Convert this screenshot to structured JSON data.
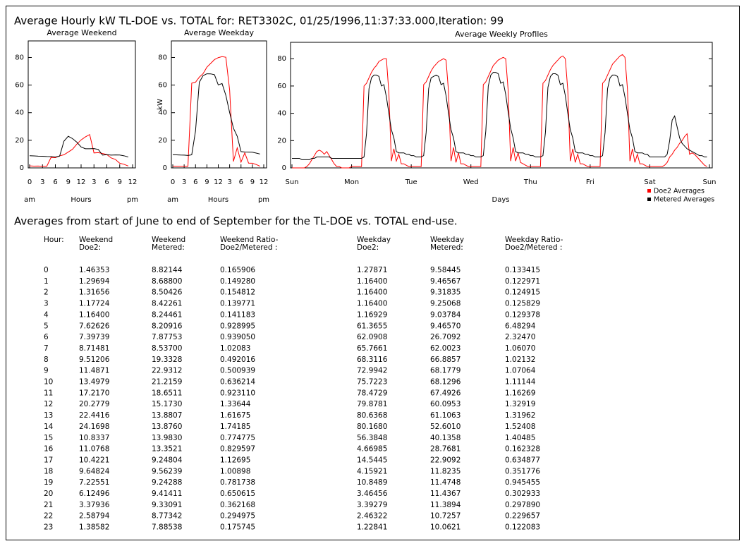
{
  "title": "Average Hourly kW TL-DOE  vs. TOTAL   for: RET3302C, 01/25/1996,11:37:33.000,Iteration: 99",
  "chart_data": [
    {
      "type": "line",
      "title": "Average Weekend",
      "xlabel": "Hours",
      "xlabel_start": "am",
      "xlabel_end": "pm",
      "x": [
        0,
        1,
        2,
        3,
        4,
        5,
        6,
        7,
        8,
        9,
        10,
        11,
        12,
        13,
        14,
        15,
        16,
        17,
        18,
        19,
        20,
        21,
        22,
        23
      ],
      "xlim": [
        0,
        24
      ],
      "xticks": [
        0,
        3,
        6,
        9,
        12,
        {
          "value": 15,
          "label": "3"
        },
        {
          "value": 18,
          "label": "6"
        },
        {
          "value": 21,
          "label": "9"
        },
        {
          "value": 24,
          "label": "12"
        }
      ],
      "ylim": [
        0,
        92
      ],
      "yticks": [
        0,
        20,
        40,
        60,
        80
      ],
      "series": [
        {
          "color": "#ff0000",
          "values": [
            1.46353,
            1.29694,
            1.31656,
            1.17724,
            1.164,
            7.62626,
            7.39739,
            8.71481,
            9.51206,
            11.4871,
            13.4979,
            17.217,
            20.2779,
            22.4416,
            24.1698,
            10.8337,
            11.0768,
            10.4221,
            9.64824,
            7.22551,
            6.12496,
            3.37936,
            2.58794,
            1.38582
          ]
        },
        {
          "color": "#000000",
          "values": [
            8.82144,
            8.688,
            8.50426,
            8.42261,
            8.24461,
            8.20916,
            7.87753,
            8.537,
            19.3328,
            22.9312,
            21.2159,
            18.6511,
            15.173,
            13.8807,
            13.876,
            13.983,
            13.3521,
            9.24804,
            9.56239,
            9.24288,
            9.41411,
            9.33091,
            8.77342,
            7.88538
          ]
        }
      ]
    },
    {
      "type": "line",
      "title": "Average Weekday",
      "ylabel": "kW",
      "xlabel": "Hours",
      "xlabel_start": "am",
      "xlabel_end": "pm",
      "x": [
        0,
        1,
        2,
        3,
        4,
        5,
        6,
        7,
        8,
        9,
        10,
        11,
        12,
        13,
        14,
        15,
        16,
        17,
        18,
        19,
        20,
        21,
        22,
        23
      ],
      "xlim": [
        0,
        24
      ],
      "xticks": [
        0,
        3,
        6,
        9,
        12,
        {
          "value": 15,
          "label": "3"
        },
        {
          "value": 18,
          "label": "6"
        },
        {
          "value": 21,
          "label": "9"
        },
        {
          "value": 24,
          "label": "12"
        }
      ],
      "ylim": [
        0,
        92
      ],
      "yticks": [
        0,
        20,
        40,
        60,
        80
      ],
      "series": [
        {
          "color": "#ff0000",
          "values": [
            1.27871,
            1.164,
            1.164,
            1.164,
            1.16929,
            61.3655,
            62.0908,
            65.7661,
            68.3116,
            72.9942,
            75.7223,
            78.4729,
            79.8781,
            80.6368,
            80.168,
            56.3848,
            4.66985,
            14.5445,
            4.15921,
            10.8489,
            3.46456,
            3.39279,
            2.46322,
            1.22841
          ]
        },
        {
          "color": "#000000",
          "values": [
            9.58445,
            9.46567,
            9.31835,
            9.25068,
            9.03784,
            9.4657,
            26.7092,
            62.0023,
            66.8857,
            68.1779,
            68.1296,
            67.4926,
            60.0953,
            61.1063,
            52.601,
            40.1358,
            28.7681,
            22.9092,
            11.8235,
            11.4748,
            11.4367,
            11.3894,
            10.7257,
            10.0621
          ]
        }
      ]
    },
    {
      "type": "line",
      "title": "Average Weekly Profiles",
      "xlabel": "Days",
      "x": [
        0,
        1,
        2,
        3,
        4,
        5,
        6,
        7,
        8,
        9,
        10,
        11,
        12,
        13,
        14,
        15,
        16,
        17,
        18,
        19,
        20,
        21,
        22,
        23,
        24,
        25,
        26,
        27,
        28,
        29,
        30,
        31,
        32,
        33,
        34,
        35,
        36,
        37,
        38,
        39,
        40,
        41,
        42,
        43,
        44,
        45,
        46,
        47,
        48,
        49,
        50,
        51,
        52,
        53,
        54,
        55,
        56,
        57,
        58,
        59,
        60,
        61,
        62,
        63,
        64,
        65,
        66,
        67,
        68,
        69,
        70,
        71,
        72,
        73,
        74,
        75,
        76,
        77,
        78,
        79,
        80,
        81,
        82,
        83,
        84,
        85,
        86,
        87,
        88,
        89,
        90,
        91,
        92,
        93,
        94,
        95,
        96,
        97,
        98,
        99,
        100,
        101,
        102,
        103,
        104,
        105,
        106,
        107,
        108,
        109,
        110,
        111,
        112,
        113,
        114,
        115,
        116,
        117,
        118,
        119,
        120,
        121,
        122,
        123,
        124,
        125,
        126,
        127,
        128,
        129,
        130,
        131,
        132,
        133,
        134,
        135,
        136,
        137,
        138,
        139,
        140,
        141,
        142,
        143,
        144,
        145,
        146,
        147,
        148,
        149,
        150,
        151,
        152,
        153,
        154,
        155,
        156,
        157,
        158,
        159,
        160,
        161,
        162,
        163,
        164,
        165,
        166,
        167
      ],
      "xlim": [
        0,
        168
      ],
      "xticks": [
        {
          "value": 0,
          "label": "Sun"
        },
        {
          "value": 24,
          "label": "Mon"
        },
        {
          "value": 48,
          "label": "Tue"
        },
        {
          "value": 72,
          "label": "Wed"
        },
        {
          "value": 96,
          "label": "Thu"
        },
        {
          "value": 120,
          "label": "Fri"
        },
        {
          "value": 144,
          "label": "Sat"
        },
        {
          "value": 168,
          "label": "Sun"
        }
      ],
      "ylim": [
        0,
        92
      ],
      "yticks": [
        0,
        20,
        40,
        60,
        80
      ],
      "series": [
        {
          "name": "Doe2 Averages",
          "color": "#ff0000",
          "values": [
            0,
            0,
            0,
            0,
            0,
            0,
            1,
            3,
            6,
            9,
            12,
            13,
            12,
            10,
            12,
            9,
            6,
            3,
            1,
            1,
            0,
            0,
            0,
            0,
            1,
            1,
            1,
            1,
            1,
            60,
            62,
            66,
            70,
            73,
            75,
            78,
            79,
            80,
            80,
            55,
            5,
            14,
            5,
            10,
            3,
            3,
            2,
            1,
            1,
            1,
            1,
            1,
            1,
            61,
            63,
            67,
            71,
            74,
            76,
            78,
            79,
            80,
            79,
            56,
            5,
            15,
            4,
            11,
            3,
            3,
            2,
            1,
            1,
            1,
            1,
            1,
            1,
            61,
            63,
            67,
            71,
            75,
            77,
            79,
            80,
            81,
            80,
            57,
            5,
            15,
            5,
            11,
            4,
            3,
            2,
            1,
            1,
            1,
            1,
            1,
            1,
            62,
            64,
            68,
            72,
            75,
            77,
            79,
            81,
            82,
            80,
            57,
            5,
            14,
            4,
            10,
            3,
            3,
            2,
            1,
            1,
            1,
            1,
            1,
            1,
            62,
            64,
            68,
            72,
            76,
            78,
            80,
            82,
            83,
            81,
            58,
            5,
            14,
            4,
            10,
            3,
            3,
            2,
            1,
            1,
            1,
            1,
            1,
            1,
            1,
            2,
            4,
            8,
            10,
            13,
            15,
            18,
            20,
            23,
            25,
            10,
            11,
            10,
            8,
            6,
            4,
            2,
            1
          ]
        },
        {
          "name": "Metered Averages",
          "color": "#000000",
          "values": [
            7,
            7,
            7,
            7,
            6,
            6,
            6,
            6,
            7,
            7,
            8,
            8,
            8,
            8,
            8,
            8,
            7,
            7,
            7,
            7,
            7,
            7,
            7,
            7,
            7,
            7,
            7,
            7,
            7,
            8,
            25,
            58,
            66,
            68,
            68,
            67,
            60,
            61,
            52,
            40,
            28,
            22,
            12,
            11,
            11,
            11,
            10,
            10,
            9,
            9,
            8,
            8,
            8,
            9,
            26,
            58,
            66,
            67,
            68,
            67,
            61,
            62,
            53,
            40,
            28,
            22,
            12,
            11,
            11,
            11,
            10,
            10,
            9,
            9,
            8,
            8,
            8,
            9,
            27,
            60,
            68,
            70,
            70,
            69,
            62,
            63,
            54,
            41,
            29,
            22,
            12,
            11,
            11,
            11,
            10,
            10,
            9,
            9,
            8,
            8,
            8,
            9,
            26,
            59,
            67,
            69,
            69,
            68,
            61,
            62,
            53,
            40,
            28,
            22,
            12,
            11,
            11,
            11,
            10,
            10,
            9,
            9,
            8,
            8,
            8,
            9,
            26,
            58,
            66,
            68,
            68,
            67,
            60,
            61,
            52,
            40,
            28,
            22,
            12,
            11,
            11,
            11,
            10,
            10,
            8,
            8,
            8,
            8,
            8,
            8,
            8,
            10,
            20,
            35,
            38,
            30,
            22,
            18,
            16,
            14,
            13,
            12,
            11,
            10,
            9,
            9,
            8,
            8
          ]
        }
      ]
    }
  ],
  "table": {
    "caption": "Averages from start of June to end of September for the TL-DOE  vs. TOTAL end-use.",
    "headers": [
      [
        "Hour:"
      ],
      [
        "Weekend",
        "Doe2:"
      ],
      [
        "Weekend",
        "Metered:"
      ],
      [
        "Weekend Ratio-",
        "Doe2/Metered :"
      ],
      [
        "Weekday",
        "Doe2:"
      ],
      [
        "Weekday",
        "Metered:"
      ],
      [
        "Weekday Ratio-",
        "Doe2/Metered :"
      ]
    ],
    "rows": [
      [
        "0",
        "1.46353",
        "8.82144",
        "0.165906",
        "1.27871",
        "9.58445",
        "0.133415"
      ],
      [
        "1",
        "1.29694",
        "8.68800",
        "0.149280",
        "1.16400",
        "9.46567",
        "0.122971"
      ],
      [
        "2",
        "1.31656",
        "8.50426",
        "0.154812",
        "1.16400",
        "9.31835",
        "0.124915"
      ],
      [
        "3",
        "1.17724",
        "8.42261",
        "0.139771",
        "1.16400",
        "9.25068",
        "0.125829"
      ],
      [
        "4",
        "1.16400",
        "8.24461",
        "0.141183",
        "1.16929",
        "9.03784",
        "0.129378"
      ],
      [
        "5",
        "7.62626",
        "8.20916",
        "0.928995",
        "61.3655",
        "9.46570",
        "6.48294"
      ],
      [
        "6",
        "7.39739",
        "7.87753",
        "0.939050",
        "62.0908",
        "26.7092",
        "2.32470"
      ],
      [
        "7",
        "8.71481",
        "8.53700",
        "1.02083",
        "65.7661",
        "62.0023",
        "1.06070"
      ],
      [
        "8",
        "9.51206",
        "19.3328",
        "0.492016",
        "68.3116",
        "66.8857",
        "1.02132"
      ],
      [
        "9",
        "11.4871",
        "22.9312",
        "0.500939",
        "72.9942",
        "68.1779",
        "1.07064"
      ],
      [
        "10",
        "13.4979",
        "21.2159",
        "0.636214",
        "75.7223",
        "68.1296",
        "1.11144"
      ],
      [
        "11",
        "17.2170",
        "18.6511",
        "0.923110",
        "78.4729",
        "67.4926",
        "1.16269"
      ],
      [
        "12",
        "20.2779",
        "15.1730",
        "1.33644",
        "79.8781",
        "60.0953",
        "1.32919"
      ],
      [
        "13",
        "22.4416",
        "13.8807",
        "1.61675",
        "80.6368",
        "61.1063",
        "1.31962"
      ],
      [
        "14",
        "24.1698",
        "13.8760",
        "1.74185",
        "80.1680",
        "52.6010",
        "1.52408"
      ],
      [
        "15",
        "10.8337",
        "13.9830",
        "0.774775",
        "56.3848",
        "40.1358",
        "1.40485"
      ],
      [
        "16",
        "11.0768",
        "13.3521",
        "0.829597",
        "4.66985",
        "28.7681",
        "0.162328"
      ],
      [
        "17",
        "10.4221",
        "9.24804",
        "1.12695",
        "14.5445",
        "22.9092",
        "0.634877"
      ],
      [
        "18",
        "9.64824",
        "9.56239",
        "1.00898",
        "4.15921",
        "11.8235",
        "0.351776"
      ],
      [
        "19",
        "7.22551",
        "9.24288",
        "0.781738",
        "10.8489",
        "11.4748",
        "0.945455"
      ],
      [
        "20",
        "6.12496",
        "9.41411",
        "0.650615",
        "3.46456",
        "11.4367",
        "0.302933"
      ],
      [
        "21",
        "3.37936",
        "9.33091",
        "0.362168",
        "3.39279",
        "11.3894",
        "0.297890"
      ],
      [
        "22",
        "2.58794",
        "8.77342",
        "0.294975",
        "2.46322",
        "10.7257",
        "0.229657"
      ],
      [
        "23",
        "1.38582",
        "7.88538",
        "0.175745",
        "1.22841",
        "10.0621",
        "0.122083"
      ]
    ]
  }
}
